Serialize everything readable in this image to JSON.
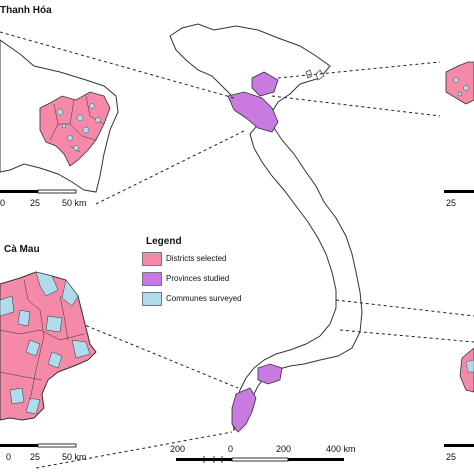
{
  "insets": {
    "thanh_hoa": {
      "title": "Thanh Hóa",
      "scale": [
        "0",
        "25",
        "50 km"
      ]
    },
    "ca_mau": {
      "title": "Cà Mau",
      "scale": [
        "0",
        "25",
        "50 km"
      ]
    },
    "right_top": {
      "scale": [
        "25"
      ]
    },
    "right_bottom": {
      "scale": [
        "25"
      ]
    }
  },
  "main_scale": [
    "200",
    "0",
    "200",
    "400 km"
  ],
  "legend": {
    "title": "Legend",
    "items": [
      {
        "label": "Districts selected",
        "color": "#f48aa8"
      },
      {
        "label": "Provinces studied",
        "color": "#c97ae0"
      },
      {
        "label": "Communes surveyed",
        "color": "#aedcec"
      }
    ]
  },
  "colors": {
    "district": "#f48aa8",
    "province": "#c97ae0",
    "commune": "#aedcec",
    "outline": "#333333"
  }
}
